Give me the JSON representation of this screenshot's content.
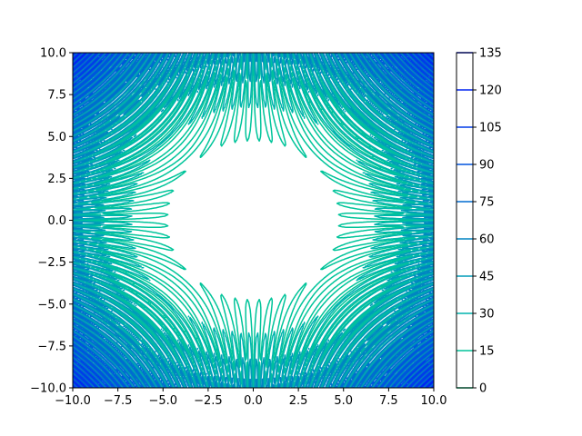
{
  "chart_data": {
    "type": "contour",
    "title": "",
    "xlabel": "",
    "ylabel": "",
    "xlim": [
      -10,
      10
    ],
    "ylim": [
      -10,
      10
    ],
    "x_ticks": [
      -10,
      -7.5,
      -5,
      -2.5,
      0,
      2.5,
      5,
      7.5,
      10
    ],
    "x_tick_labels": [
      "−10.0",
      "−7.5",
      "−5.0",
      "−2.5",
      "0.0",
      "2.5",
      "5.0",
      "7.5",
      "10.0"
    ],
    "y_ticks": [
      -10,
      -7.5,
      -5,
      -2.5,
      0,
      2.5,
      5,
      7.5,
      10
    ],
    "y_tick_labels": [
      "−10.0",
      "−7.5",
      "−5.0",
      "−2.5",
      "0.0",
      "2.5",
      "5.0",
      "7.5",
      "10.0"
    ],
    "levels": [
      0,
      15,
      30,
      45,
      60,
      75,
      90,
      105,
      120,
      135
    ],
    "colorbar": {
      "ticks": [
        0,
        15,
        30,
        45,
        60,
        75,
        90,
        105,
        120,
        135
      ],
      "tick_labels": [
        "0",
        "15",
        "30",
        "45",
        "60",
        "75",
        "90",
        "105",
        "120",
        "135"
      ],
      "level_colors": [
        "#00d47f",
        "#00c49a",
        "#00b4ad",
        "#009cb8",
        "#0084c2",
        "#006cd0",
        "#0054de",
        "#003ce8",
        "#0024f2",
        "#0010fb"
      ]
    },
    "grid": false,
    "legend": "none"
  }
}
